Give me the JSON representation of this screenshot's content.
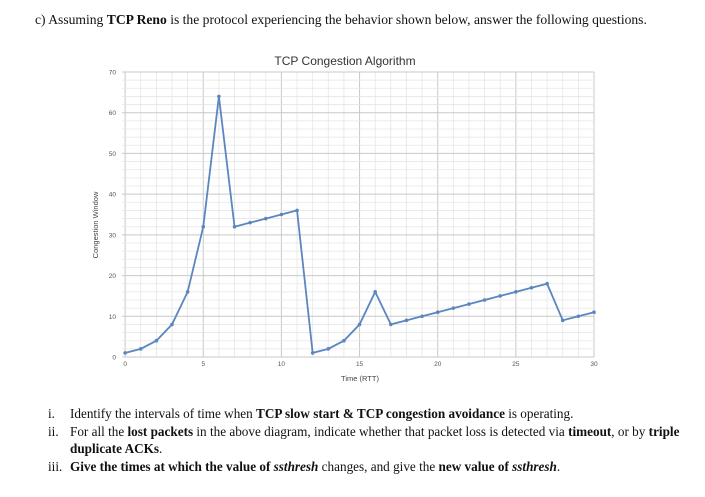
{
  "intro": {
    "prefix": "c) Assuming ",
    "protocol": "TCP Reno",
    "suffix": " is the protocol experiencing the behavior shown below, answer the following questions."
  },
  "chart_data": {
    "type": "line",
    "title": "TCP Congestion Algorithm",
    "xlabel": "Time (RTT)",
    "ylabel": "Congestion Window",
    "xlim": [
      -0.2,
      30
    ],
    "ylim": [
      0,
      70
    ],
    "xticks": [
      0,
      5,
      10,
      15,
      20,
      25,
      30
    ],
    "yticks": [
      0,
      10,
      20,
      30,
      40,
      50,
      60,
      70
    ],
    "grid": true,
    "color": "#5b86bf",
    "x": [
      0,
      1,
      2,
      3,
      4,
      5,
      6,
      7,
      8,
      9,
      10,
      11,
      12,
      13,
      14,
      15,
      16,
      17,
      18,
      19,
      20,
      21,
      22,
      23,
      24,
      25,
      26,
      27,
      28,
      29,
      30
    ],
    "y": [
      1,
      2,
      4,
      8,
      16,
      32,
      64,
      32,
      33,
      34,
      35,
      36,
      1,
      2,
      4,
      8,
      16,
      8,
      9,
      10,
      11,
      12,
      13,
      14,
      15,
      16,
      17,
      18,
      9,
      10,
      11
    ]
  },
  "questions": [
    {
      "num": "i.",
      "a": "Identify the intervals of time when ",
      "b": "TCP slow start",
      "c": " & ",
      "d": "TCP congestion avoidance",
      "e": " is operating."
    },
    {
      "num": "ii.",
      "a": "For all the ",
      "b": "lost packets",
      "c": " in the above diagram, indicate whether that packet loss is detected via ",
      "d": "timeout",
      "e": ", or by ",
      "f": "triple duplicate ACKs",
      "g": "."
    },
    {
      "num": "iii.",
      "a": "Give the times at which the value of ",
      "b": "ssthresh",
      "c": " changes, and give the ",
      "d": "new value of ",
      "e": "ssthresh",
      "f": "."
    }
  ]
}
